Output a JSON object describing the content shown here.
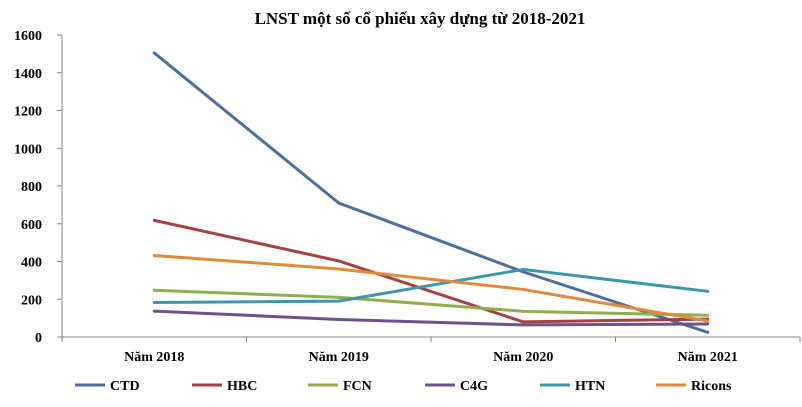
{
  "chart_data": {
    "type": "line",
    "title": "LNST một số cổ phiếu xây dựng từ 2018-2021",
    "xlabel": "",
    "ylabel": "",
    "categories": [
      "Năm 2018",
      "Năm 2019",
      "Năm 2020",
      "Năm 2021"
    ],
    "ylim": [
      0,
      1600
    ],
    "yticks": [
      0,
      200,
      400,
      600,
      800,
      1000,
      1200,
      1400,
      1600
    ],
    "grid": false,
    "legend_position": "bottom",
    "series": [
      {
        "name": "CTD",
        "color": "#4A6FA0",
        "values": [
          1505,
          710,
          345,
          25
        ]
      },
      {
        "name": "HBC",
        "color": "#A5423F",
        "values": [
          618,
          403,
          80,
          95
        ]
      },
      {
        "name": "FCN",
        "color": "#8FAE4F",
        "values": [
          248,
          210,
          136,
          115
        ]
      },
      {
        "name": "C4G",
        "color": "#6E5290",
        "values": [
          137,
          93,
          64,
          69
        ]
      },
      {
        "name": "HTN",
        "color": "#3E97A8",
        "values": [
          183,
          190,
          358,
          242
        ]
      },
      {
        "name": "Ricons",
        "color": "#E08A3C",
        "values": [
          432,
          360,
          252,
          85
        ]
      }
    ]
  }
}
